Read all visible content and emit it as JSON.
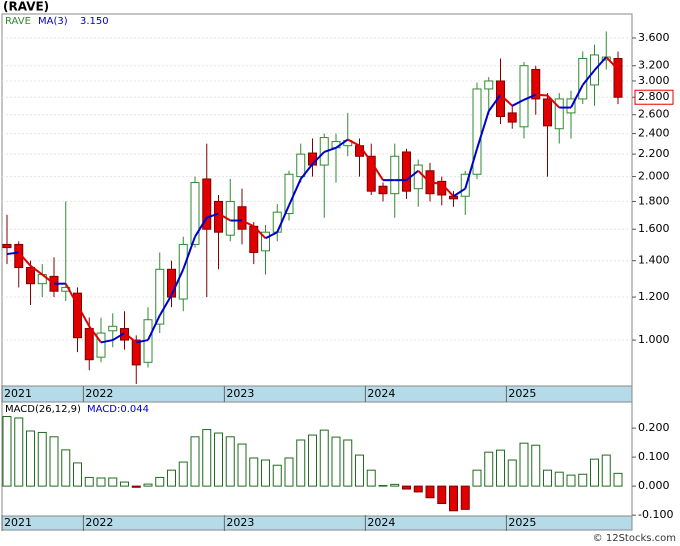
{
  "chart_data": [
    {
      "type": "candlestick",
      "title": "(RAVE)",
      "categories": [
        "2021",
        null,
        null,
        null,
        null,
        null,
        null,
        "2022",
        null,
        null,
        null,
        null,
        null,
        null,
        null,
        null,
        null,
        null,
        null,
        "2023",
        null,
        null,
        null,
        null,
        null,
        null,
        null,
        null,
        null,
        null,
        null,
        "2024",
        null,
        null,
        null,
        null,
        null,
        null,
        null,
        null,
        null,
        null,
        null,
        "2025",
        null,
        null,
        null,
        null,
        null,
        null,
        null,
        null,
        null
      ],
      "log_scale": true,
      "grid": true,
      "ylim": [
        0.823,
        3.985
      ],
      "yticks": [
        {
          "value": 1.0,
          "label": "1.000"
        },
        {
          "value": 1.2,
          "label": "1.200"
        },
        {
          "value": 1.4,
          "label": "1.400"
        },
        {
          "value": 1.6,
          "label": "1.600"
        },
        {
          "value": 1.8,
          "label": "1.800"
        },
        {
          "value": 2.0,
          "label": "2.000"
        },
        {
          "value": 2.2,
          "label": "2.200"
        },
        {
          "value": 2.4,
          "label": "2.400"
        },
        {
          "value": 2.6,
          "label": "2.600"
        },
        {
          "value": 2.8,
          "label": "2.800"
        },
        {
          "value": 3.0,
          "label": "3.000"
        },
        {
          "value": 3.2,
          "label": "3.200"
        },
        {
          "value": 3.6,
          "label": "3.600"
        }
      ],
      "last_price": {
        "value": 2.8,
        "label": "2.800"
      },
      "series": [
        {
          "name": "RAVE",
          "color": "#2e8b2e",
          "up_color": "#1f6b1f",
          "down_color": "#e00000",
          "open": [
            1.5,
            1.5,
            1.36,
            1.27,
            1.31,
            1.23,
            1.22,
            1.05,
            0.93,
            1.04,
            1.05,
            1.0,
            0.91,
            1.07,
            1.35,
            1.19,
            1.5,
            1.98,
            1.8,
            1.56,
            1.76,
            1.62,
            1.46,
            1.58,
            1.71,
            2.0,
            2.21,
            2.1,
            2.26,
            2.28,
            2.28,
            2.18,
            1.92,
            1.86,
            2.22,
            1.9,
            2.05,
            1.96,
            1.84,
            1.84,
            2.02,
            2.9,
            3.0,
            2.62,
            2.47,
            3.15,
            2.78,
            2.45,
            2.62,
            2.78,
            2.95,
            3.28,
            3.3
          ],
          "high": [
            1.7,
            1.52,
            1.4,
            1.38,
            1.42,
            1.8,
            1.25,
            1.1,
            1.1,
            1.12,
            1.13,
            1.02,
            1.15,
            1.45,
            1.4,
            1.55,
            2.0,
            2.3,
            1.85,
            1.98,
            1.9,
            1.65,
            1.63,
            1.78,
            2.05,
            2.3,
            2.35,
            2.4,
            2.4,
            2.62,
            2.35,
            2.3,
            1.95,
            2.3,
            2.25,
            2.15,
            2.12,
            2.0,
            1.88,
            2.05,
            2.98,
            3.05,
            3.3,
            2.7,
            3.25,
            3.2,
            2.85,
            2.85,
            2.88,
            3.4,
            3.5,
            3.7,
            3.4
          ],
          "low": [
            1.38,
            1.25,
            1.16,
            1.2,
            1.2,
            1.18,
            0.95,
            0.88,
            0.91,
            0.97,
            0.96,
            0.83,
            0.89,
            1.03,
            1.15,
            1.13,
            1.48,
            1.2,
            1.35,
            1.52,
            1.5,
            1.38,
            1.32,
            1.52,
            1.66,
            1.95,
            2.0,
            1.68,
            1.95,
            2.18,
            2.0,
            1.85,
            1.8,
            1.68,
            1.82,
            1.76,
            1.8,
            1.77,
            1.76,
            1.7,
            1.98,
            2.6,
            2.5,
            2.45,
            2.35,
            2.6,
            2.0,
            2.3,
            2.35,
            2.72,
            2.7,
            3.15,
            2.72
          ],
          "close": [
            1.48,
            1.36,
            1.27,
            1.32,
            1.23,
            1.25,
            1.01,
            0.92,
            1.03,
            1.06,
            1.0,
            0.9,
            1.09,
            1.35,
            1.2,
            1.5,
            1.95,
            1.6,
            1.58,
            1.8,
            1.6,
            1.45,
            1.58,
            1.72,
            2.02,
            2.2,
            2.1,
            2.36,
            2.32,
            2.33,
            2.18,
            1.88,
            1.86,
            2.18,
            1.88,
            2.1,
            1.86,
            1.85,
            1.82,
            2.02,
            2.9,
            3.0,
            2.58,
            2.52,
            3.2,
            2.78,
            2.48,
            2.78,
            2.78,
            3.3,
            3.35,
            3.32,
            2.8
          ]
        },
        {
          "name": "MA(3)",
          "color": "#0000cc",
          "down_color": "#e00000",
          "last_value": {
            "value": 3.15,
            "label": "3.150"
          },
          "values": [
            1.44,
            1.45,
            1.37,
            1.32,
            1.27,
            1.27,
            1.16,
            1.06,
            0.99,
            1.0,
            1.03,
            0.99,
            1.0,
            1.11,
            1.21,
            1.35,
            1.55,
            1.68,
            1.71,
            1.66,
            1.66,
            1.62,
            1.54,
            1.58,
            1.77,
            1.98,
            2.11,
            2.22,
            2.26,
            2.34,
            2.28,
            2.13,
            1.97,
            1.97,
            1.97,
            2.05,
            1.95,
            1.94,
            1.84,
            1.9,
            2.25,
            2.64,
            2.83,
            2.7,
            2.77,
            2.83,
            2.82,
            2.68,
            2.68,
            2.95,
            3.14,
            3.32,
            3.15
          ]
        }
      ]
    },
    {
      "type": "bar",
      "title": "MACD(26,12,9)",
      "categories": [
        "2021",
        null,
        null,
        null,
        null,
        null,
        null,
        "2022",
        null,
        null,
        null,
        null,
        null,
        null,
        null,
        null,
        null,
        null,
        null,
        "2023",
        null,
        null,
        null,
        null,
        null,
        null,
        null,
        null,
        null,
        null,
        null,
        "2024",
        null,
        null,
        null,
        null,
        null,
        null,
        null,
        null,
        null,
        null,
        null,
        "2025",
        null,
        null,
        null,
        null,
        null,
        null,
        null,
        null,
        null
      ],
      "latest": {
        "value": 0.044,
        "label": "MACD:0.044"
      },
      "ylim": [
        -0.103,
        0.29
      ],
      "yticks": [
        {
          "value": -0.1,
          "label": "-0.100"
        },
        {
          "value": 0.0,
          "label": "0.000"
        },
        {
          "value": 0.1,
          "label": "0.100"
        },
        {
          "value": 0.2,
          "label": "0.200"
        }
      ],
      "series": [
        {
          "name": "MACD",
          "color": "#1f6b1f",
          "negative_color": "#e00000",
          "values": [
            0.24,
            0.235,
            0.19,
            0.185,
            0.17,
            0.125,
            0.08,
            0.03,
            0.028,
            0.028,
            0.014,
            -0.004,
            0.007,
            0.03,
            0.055,
            0.083,
            0.17,
            0.195,
            0.183,
            0.17,
            0.145,
            0.097,
            0.09,
            0.072,
            0.097,
            0.159,
            0.176,
            0.193,
            0.169,
            0.159,
            0.107,
            0.055,
            0.002,
            0.006,
            -0.01,
            -0.02,
            -0.04,
            -0.06,
            -0.085,
            -0.08,
            0.055,
            0.117,
            0.124,
            0.09,
            0.148,
            0.141,
            0.055,
            0.048,
            0.038,
            0.041,
            0.093,
            0.107,
            0.044
          ]
        }
      ]
    }
  ],
  "copyright": "© 12Stocks.com"
}
